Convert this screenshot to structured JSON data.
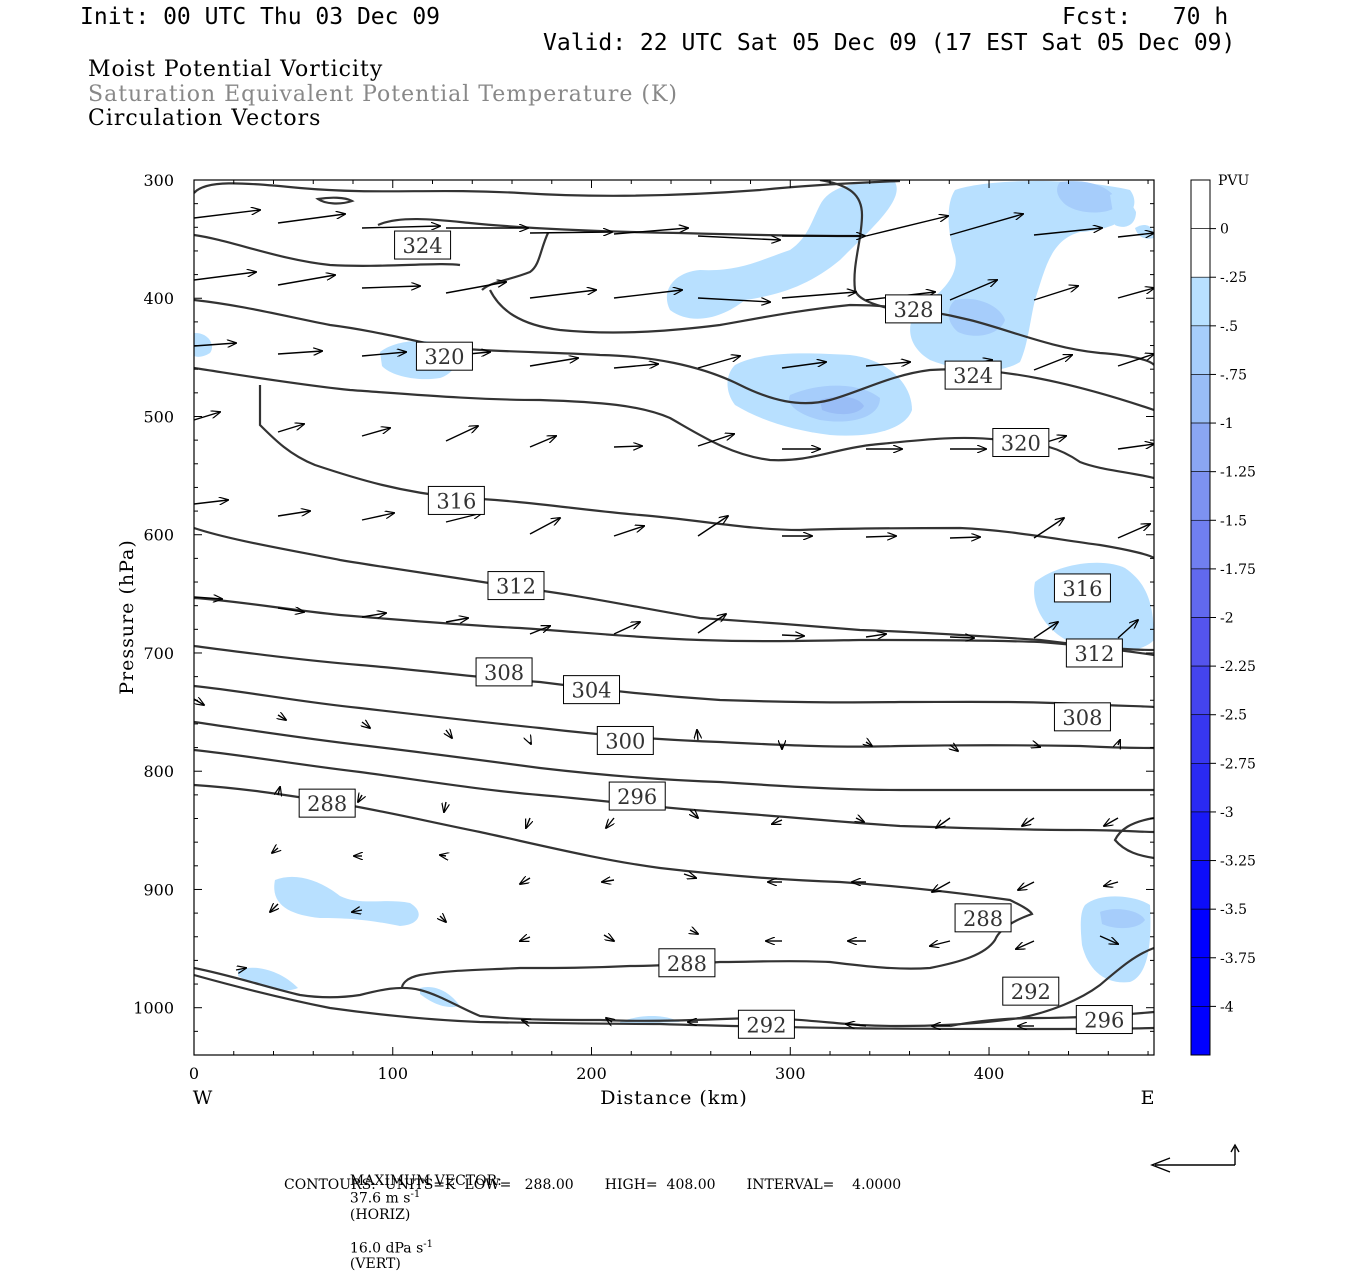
{
  "header": {
    "init": "Init: 00 UTC Thu 03 Dec 09",
    "fcst": "Fcst:   70 h",
    "valid": "Valid: 22 UTC Sat 05 Dec 09 (17 EST Sat 05 Dec 09)"
  },
  "legend_lines": {
    "mpv": "Moist Potential Vorticity",
    "theta": "Saturation Equivalent Potential Temperature (K)",
    "vectors": "Circulation Vectors"
  },
  "footer": {
    "max_vector_prefix": "MAXIMUM VECTOR:",
    "horiz_value": "37.6 m s",
    "horiz_exp": "-1",
    "horiz_suffix": "(HORIZ)",
    "vert_value": "16.0 dPa s",
    "vert_exp": "-1",
    "vert_suffix": "(VERT)",
    "contours": "CONTOURS:  UNITS=K  LOW=   288.00       HIGH=  408.00       INTERVAL=    4.0000"
  },
  "colors": {
    "contour": "#333333",
    "mpv_fills": [
      "#ffffff",
      "#b8e0ff",
      "#a6cdfb",
      "#99bdf6",
      "#8aa6f3",
      "#7d92f1",
      "#707ff0",
      "#6169ee",
      "#5454ee",
      "#4444ee",
      "#3737f0",
      "#2a2af3",
      "#1a1af6",
      "#0d0dfa",
      "#0000ff"
    ]
  },
  "chart_data": {
    "type": "contour",
    "xlabel": "Distance (km)",
    "ylabel": "Pressure (hPa)",
    "x_ticks": [
      0,
      100,
      200,
      300,
      400
    ],
    "y_ticks": [
      300,
      400,
      500,
      600,
      700,
      800,
      900,
      1000
    ],
    "xlim": [
      0,
      483
    ],
    "ylim": [
      1040,
      300
    ],
    "x_end_labels": {
      "left": "W",
      "right": "E"
    },
    "colorbar": {
      "title": "PVU",
      "levels": [
        0,
        -0.25,
        -0.5,
        -0.75,
        -1,
        -1.25,
        -1.5,
        -1.75,
        -2,
        -2.25,
        -2.5,
        -2.75,
        -3,
        -3.25,
        -3.5,
        -3.75,
        -4
      ],
      "labels": [
        "0",
        "-.25",
        "-.5",
        "-.75",
        "-1",
        "-1.25",
        "-1.5",
        "-1.75",
        "-2",
        "-2.25",
        "-2.5",
        "-2.75",
        "-3",
        "-3.25",
        "-3.5",
        "-3.75",
        "-4"
      ]
    },
    "contour_labels": [
      {
        "text": "324",
        "x": 115,
        "p": 355
      },
      {
        "text": "328",
        "x": 362,
        "p": 409
      },
      {
        "text": "320",
        "x": 126,
        "p": 449
      },
      {
        "text": "324",
        "x": 392,
        "p": 465
      },
      {
        "text": "320",
        "x": 416,
        "p": 522
      },
      {
        "text": "316",
        "x": 132,
        "p": 571
      },
      {
        "text": "312",
        "x": 162,
        "p": 643
      },
      {
        "text": "316",
        "x": 447,
        "p": 645
      },
      {
        "text": "308",
        "x": 156,
        "p": 716
      },
      {
        "text": "312",
        "x": 453,
        "p": 700
      },
      {
        "text": "304",
        "x": 200,
        "p": 731
      },
      {
        "text": "308",
        "x": 447,
        "p": 754
      },
      {
        "text": "300",
        "x": 217,
        "p": 774
      },
      {
        "text": "296",
        "x": 223,
        "p": 821
      },
      {
        "text": "288",
        "x": 67,
        "p": 827
      },
      {
        "text": "288",
        "x": 397,
        "p": 924
      },
      {
        "text": "288",
        "x": 248,
        "p": 962
      },
      {
        "text": "292",
        "x": 421,
        "p": 986
      },
      {
        "text": "292",
        "x": 288,
        "p": 1014
      },
      {
        "text": "296",
        "x": 458,
        "p": 1010
      }
    ]
  }
}
